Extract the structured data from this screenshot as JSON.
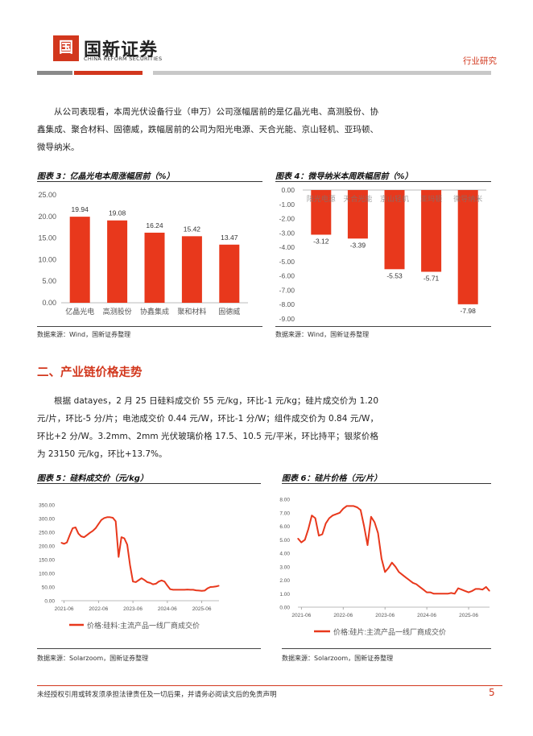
{
  "header": {
    "logo_mark": "国",
    "logo_cn": "国新证券",
    "logo_en": "CHINA REFORM SECURITIES",
    "doc_type": "行业研究"
  },
  "intro_paragraph": "从公司表现看，本周光伏设备行业（申万）公司涨幅居前的是亿晶光电、高测股份、协鑫集成、聚合材料、固德威，跌幅居前的公司为阳光电源、天合光能、京山轻机、亚玛顿、微导纳米。",
  "figures": {
    "fig3": {
      "title": "图表 3：亿晶光电本周涨幅居前（%）",
      "source": "数据来源：Wind，国新证券整理"
    },
    "fig4": {
      "title": "图表 4：微导纳米本周跌幅居前（%）",
      "source": "数据来源：Wind，国新证券整理"
    },
    "fig5": {
      "title": "图表 5：硅料成交价（元/kg）",
      "source": "数据来源：Solarzoom，国新证券整理"
    },
    "fig6": {
      "title": "图表 6：硅片价格（元/片）",
      "source": "数据来源：Solarzoom，国新证券整理"
    }
  },
  "section2": {
    "heading": "二、产业链价格走势",
    "paragraph": "根据 datayes，2 月 25 日硅料成交价 55 元/kg，环比-1 元/kg；硅片成交价为 1.20 元/片，环比-5 分/片；电池成交价 0.44 元/W，环比-1 分/W；组件成交价为 0.84 元/W，环比+2 分/W。3.2mm、2mm 光伏玻璃价格 17.5、10.5 元/平米，环比持平；银浆价格为 23150 元/kg，环比+13.7%。"
  },
  "footer": {
    "disclaimer": "未经授权引用或转发须承担法律责任及一切后果，并请务必阅读文后的免责声明",
    "page": "5"
  },
  "colors": {
    "accent": "#d2371d",
    "bar": "#e8381c",
    "line": "#e8381c"
  },
  "chart_data": [
    {
      "type": "bar",
      "categories": [
        "亿晶光电",
        "高测股份",
        "协鑫集成",
        "聚和材料",
        "固德威"
      ],
      "values": [
        19.94,
        19.08,
        16.24,
        15.42,
        13.47
      ],
      "value_labels": [
        "19.94",
        "19.08",
        "16.24",
        "15.42",
        "13.47"
      ],
      "ylim": [
        0,
        25
      ],
      "ticks": [
        "25.00",
        "20.00",
        "15.00",
        "10.00",
        "5.00",
        "0.00"
      ],
      "grid": false
    },
    {
      "type": "bar",
      "categories": [
        "阳光电源",
        "天合光能",
        "京山轻机",
        "亚玛顿",
        "微导纳米"
      ],
      "values": [
        -3.12,
        -3.39,
        -5.53,
        -5.71,
        -7.98
      ],
      "value_labels": [
        "-3.12",
        "-3.39",
        "-5.53",
        "-5.71",
        "-7.98"
      ],
      "ylim": [
        -9,
        0
      ],
      "ticks": [
        "0.00",
        "-1.00",
        "-2.00",
        "-3.00",
        "-4.00",
        "-5.00",
        "-6.00",
        "-7.00",
        "-8.00",
        "-9.00"
      ],
      "grid": false
    },
    {
      "type": "line",
      "legend": "价格:硅料:主流产品一线厂商成交价",
      "legend_position": "bottom",
      "x_ticks": [
        "2021-06",
        "2022-06",
        "2023-06",
        "2024-06",
        "2025-06"
      ],
      "ylim": [
        0,
        350
      ],
      "y_ticks": [
        "350.00",
        "300.00",
        "250.00",
        "200.00",
        "150.00",
        "100.00",
        "50.00",
        "0.00"
      ],
      "x": [
        "2021-05",
        "2021-06",
        "2021-07",
        "2021-08",
        "2021-09",
        "2021-10",
        "2021-11",
        "2021-12",
        "2022-01",
        "2022-02",
        "2022-03",
        "2022-04",
        "2022-05",
        "2022-06",
        "2022-07",
        "2022-08",
        "2022-09",
        "2022-10",
        "2022-11",
        "2022-12",
        "2023-01",
        "2023-02",
        "2023-03",
        "2023-04",
        "2023-05",
        "2023-06",
        "2023-07",
        "2023-08",
        "2023-09",
        "2023-10",
        "2023-11",
        "2023-12",
        "2024-01",
        "2024-02",
        "2024-03",
        "2024-04",
        "2024-05",
        "2024-06",
        "2024-07",
        "2024-08",
        "2024-09",
        "2024-10",
        "2024-11",
        "2024-12",
        "2025-01",
        "2025-02",
        "2025-03",
        "2025-04",
        "2025-05",
        "2025-06",
        "2025-07",
        "2025-08",
        "2025-09",
        "2025-10",
        "2025-11",
        "2025-12"
      ],
      "values": [
        212,
        208,
        213,
        240,
        265,
        268,
        245,
        235,
        232,
        240,
        248,
        255,
        265,
        280,
        295,
        302,
        305,
        305,
        303,
        290,
        160,
        232,
        228,
        205,
        130,
        70,
        68,
        75,
        82,
        76,
        68,
        65,
        60,
        62,
        70,
        74,
        70,
        55,
        42,
        40,
        40,
        40,
        40,
        40,
        41,
        40,
        40,
        38,
        37,
        36,
        37,
        45,
        50,
        51,
        52,
        55
      ]
    },
    {
      "type": "line",
      "legend": "价格:硅片:主流产品一线厂商成交价",
      "legend_position": "bottom",
      "x_ticks": [
        "2021-06",
        "2022-06",
        "2023-06",
        "2024-06",
        "2025-06"
      ],
      "ylim": [
        0,
        8
      ],
      "y_ticks": [
        "8.00",
        "7.00",
        "6.00",
        "5.00",
        "4.00",
        "3.00",
        "2.00",
        "1.00",
        "0.00"
      ],
      "x": [
        "2021-05",
        "2021-06",
        "2021-07",
        "2021-08",
        "2021-09",
        "2021-10",
        "2021-11",
        "2021-12",
        "2022-01",
        "2022-02",
        "2022-03",
        "2022-04",
        "2022-05",
        "2022-06",
        "2022-07",
        "2022-08",
        "2022-09",
        "2022-10",
        "2022-11",
        "2022-12",
        "2023-01",
        "2023-02",
        "2023-03",
        "2023-04",
        "2023-05",
        "2023-06",
        "2023-07",
        "2023-08",
        "2023-09",
        "2023-10",
        "2023-11",
        "2023-12",
        "2024-01",
        "2024-02",
        "2024-03",
        "2024-04",
        "2024-05",
        "2024-06",
        "2024-07",
        "2024-08",
        "2024-09",
        "2024-10",
        "2024-11",
        "2024-12",
        "2025-01",
        "2025-02",
        "2025-03",
        "2025-04",
        "2025-05",
        "2025-06",
        "2025-07",
        "2025-08",
        "2025-09",
        "2025-10",
        "2025-11",
        "2025-12"
      ],
      "values": [
        5.1,
        4.8,
        5.0,
        5.8,
        6.8,
        6.6,
        5.3,
        5.4,
        6.2,
        6.6,
        6.8,
        6.9,
        7.0,
        7.3,
        7.5,
        7.5,
        7.5,
        7.4,
        7.2,
        6.0,
        4.6,
        6.7,
        6.3,
        5.5,
        3.6,
        2.6,
        2.9,
        3.3,
        3.0,
        2.6,
        2.4,
        2.2,
        2.0,
        1.8,
        1.7,
        1.5,
        1.3,
        1.1,
        1.1,
        1.0,
        1.0,
        1.0,
        1.0,
        1.0,
        1.05,
        1.0,
        1.4,
        1.3,
        1.2,
        1.1,
        1.2,
        1.35,
        1.35,
        1.3,
        1.5,
        1.2
      ]
    }
  ]
}
